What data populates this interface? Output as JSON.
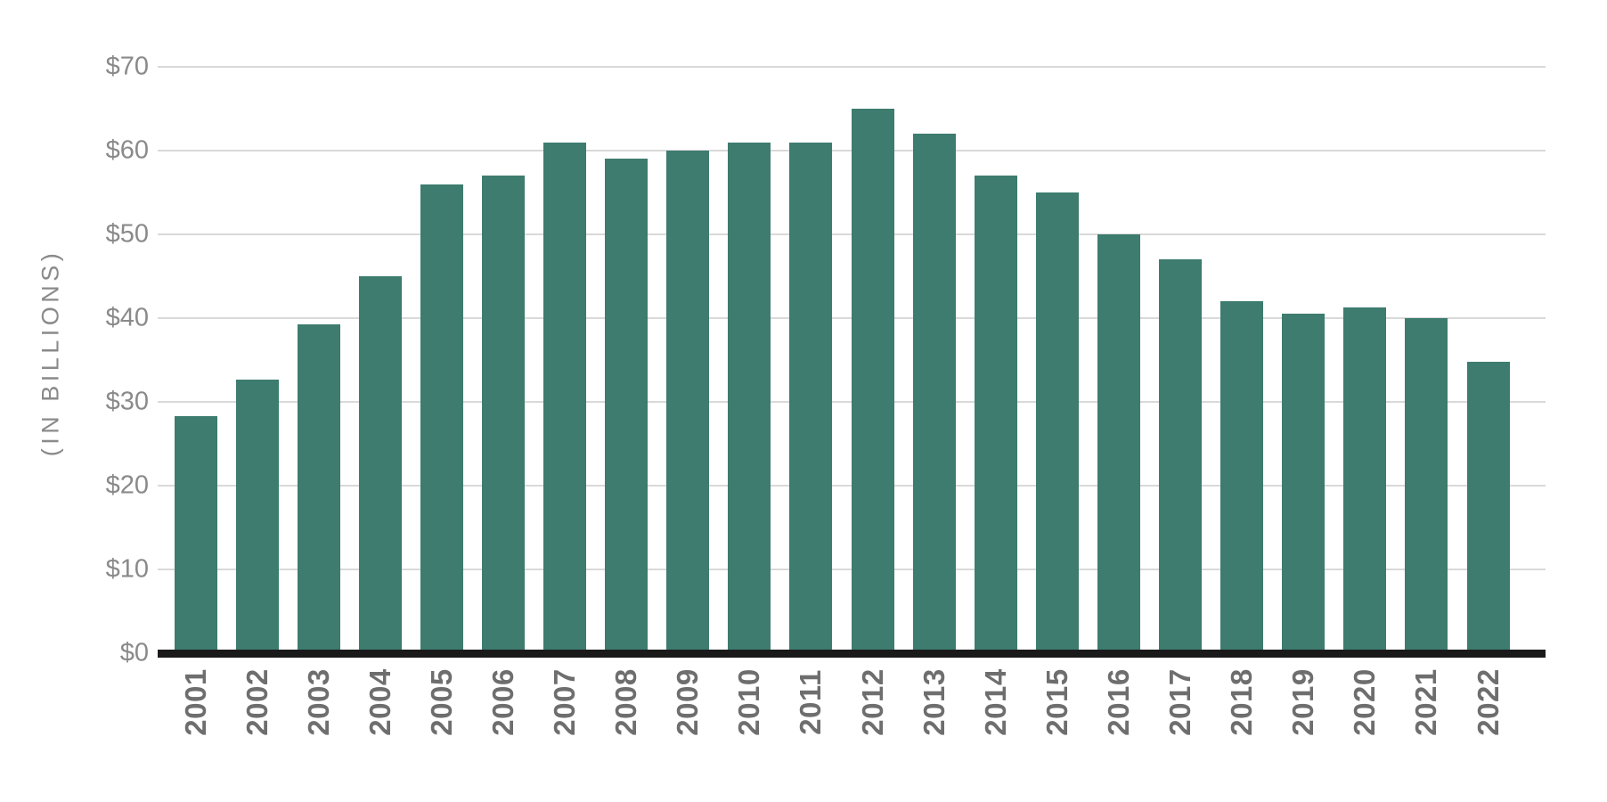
{
  "chart_data": {
    "type": "bar",
    "title": "",
    "xlabel": "",
    "ylabel": "(IN BILLIONS)",
    "categories": [
      "2001",
      "2002",
      "2003",
      "2004",
      "2005",
      "2006",
      "2007",
      "2008",
      "2009",
      "2010",
      "2011",
      "2012",
      "2013",
      "2014",
      "2015",
      "2016",
      "2017",
      "2018",
      "2019",
      "2020",
      "2021",
      "2022"
    ],
    "values": [
      28.3,
      32.7,
      39.3,
      45,
      56,
      57,
      61,
      59,
      60,
      61,
      61,
      65,
      62,
      57,
      55,
      50,
      47,
      42,
      40.5,
      41.3,
      40,
      34.8
    ],
    "ylim": [
      0,
      70
    ],
    "y_ticks": [
      "$0",
      "$10",
      "$20",
      "$30",
      "$40",
      "$50",
      "$60",
      "$70"
    ],
    "grid": true,
    "legend_position": "none",
    "colors": {
      "bar": "#3D7C6F",
      "gridline": "#D9D9D9",
      "axis_line": "#1A1A1A",
      "y_tick_text": "#8A8A8A",
      "x_tick_text": "#6E6E6E",
      "background": "#FFFFFF"
    }
  }
}
